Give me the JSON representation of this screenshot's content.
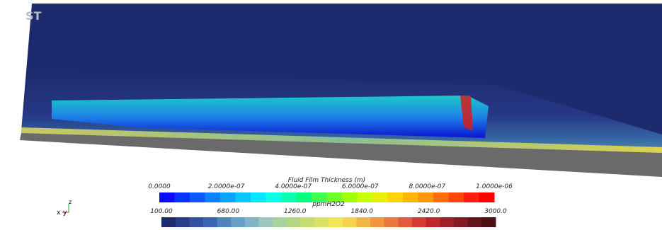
{
  "logo": "ST",
  "triad": {
    "x": "x",
    "y": "y",
    "z": "z"
  },
  "colorbars": [
    {
      "title": "Fluid Film Thickness (m)",
      "ticks": [
        "0.0000",
        "2.0000e-07",
        "4.0000e-07",
        "6.0000e-07",
        "8.0000e-07",
        "1.0000e-06"
      ],
      "colors": [
        "#0a0aff",
        "#0a32ff",
        "#0a5aff",
        "#0a82ff",
        "#0aa5ff",
        "#0ac8ff",
        "#0ae6ff",
        "#0affe6",
        "#0affb4",
        "#0aff82",
        "#3cff50",
        "#6eff28",
        "#a0ff0a",
        "#c8ff0a",
        "#e6f00a",
        "#ffd20a",
        "#ffb40a",
        "#ff960a",
        "#ff6e0a",
        "#ff460a",
        "#ff1e0a",
        "#ff0000"
      ]
    },
    {
      "title": "ppmH2O2",
      "ticks": [
        "100.00",
        "680.00",
        "1260.0",
        "1840.0",
        "2420.0",
        "3000.0"
      ],
      "colors": [
        "#1e2a6e",
        "#283c8c",
        "#3250a0",
        "#3c64b4",
        "#5082be",
        "#64a0c8",
        "#82b4c8",
        "#9cc8be",
        "#a8d2a0",
        "#b4d782",
        "#c8dc6e",
        "#dce164",
        "#f0e65a",
        "#f5d250",
        "#f5b446",
        "#f0963c",
        "#eb783c",
        "#e15a3c",
        "#d23c32",
        "#be282d",
        "#a01e28",
        "#821923",
        "#641419",
        "#4b0f0f"
      ]
    }
  ]
}
